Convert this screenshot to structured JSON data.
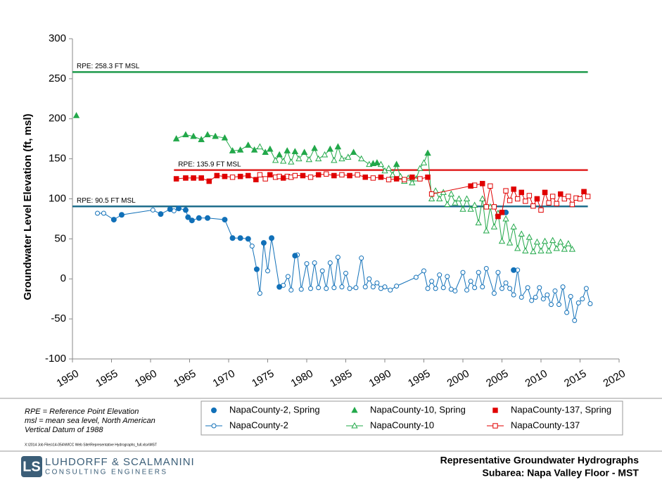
{
  "chart_data": {
    "type": "scatter",
    "y_label": "Groundwater Level Elevation (ft, msl)",
    "xlim": [
      1950,
      2020
    ],
    "xticks": [
      1950,
      1955,
      1960,
      1965,
      1970,
      1975,
      1980,
      1985,
      1990,
      1995,
      2000,
      2005,
      2010,
      2015,
      2020
    ],
    "ylim": [
      -100,
      300
    ],
    "yticks": [
      -100,
      -50,
      0,
      50,
      100,
      150,
      200,
      250,
      300
    ],
    "grid": false,
    "legend": "bottom",
    "reference_lines": [
      {
        "value": 258.3,
        "label": "RPE:  258.3 FT MSL",
        "color": "#1e9a4c",
        "x": [
          1950,
          2016
        ]
      },
      {
        "value": 135.9,
        "label": "RPE:  135.9 FT MSL",
        "color": "#e02020",
        "x": [
          1963,
          2016
        ]
      },
      {
        "value": 90.5,
        "label": "RPE:  90.5 FT MSL",
        "color": "#1f6e8c",
        "x": [
          1950,
          2016
        ]
      }
    ],
    "series": [
      {
        "name": "NapaCounty-2, Spring",
        "color": "#1170b8",
        "marker": "circle",
        "filled": true,
        "line": false,
        "x": [
          1955.3,
          1956.3,
          1961.3,
          1962.5,
          1963.6,
          1964.5,
          1964.8,
          1965.3,
          1966.2,
          1967.3,
          1969.5,
          1970.5,
          1971.5,
          1972.5,
          1973.6,
          1974.5,
          1975.5,
          1976.5,
          1978.5,
          2005.5,
          2006.5
        ],
        "values": [
          74,
          80,
          81,
          87,
          88,
          86,
          77,
          73,
          76,
          76,
          74,
          51,
          51,
          50,
          12,
          45,
          51,
          -10,
          29,
          83,
          11
        ]
      },
      {
        "name": "NapaCounty-10, Spring",
        "color": "#22a84a",
        "marker": "triangle",
        "filled": true,
        "line": false,
        "x": [
          1950.5,
          1963.3,
          1964.5,
          1965.5,
          1966.5,
          1967.3,
          1968.3,
          1969.5,
          1970.5,
          1971.5,
          1972.5,
          1973.3,
          1974.7,
          1975.3,
          1976.5,
          1977.5,
          1978.5,
          1979.7,
          1981,
          1983,
          1984,
          1986,
          1988.5,
          1989,
          1991.5,
          1995.5
        ],
        "values": [
          204,
          175,
          180,
          178,
          174,
          180,
          178,
          176,
          160,
          161,
          167,
          161,
          158,
          162,
          155,
          160,
          159,
          158,
          163,
          162,
          165,
          158,
          144,
          145,
          143,
          157
        ]
      },
      {
        "name": "NapaCounty-137, Spring",
        "color": "#e00000",
        "marker": "square",
        "filled": true,
        "line": false,
        "x": [
          1963.3,
          1964.5,
          1965.5,
          1966.5,
          1967.5,
          1968.5,
          1969.5,
          1971.5,
          1972.5,
          1973.5,
          1975.3,
          1977,
          1979.5,
          1981.5,
          1983.5,
          1985.5,
          1987.5,
          1989.5,
          1991.5,
          1993.5,
          1995.5,
          2001,
          2002.5,
          2004.5,
          2005,
          2006.5,
          2007.5,
          2009.5,
          2010.5,
          2012.5,
          2015.5
        ],
        "values": [
          125,
          126,
          126,
          126,
          122,
          129,
          128,
          128,
          129,
          124,
          130,
          126,
          129,
          130,
          129,
          129,
          127,
          127,
          125,
          127,
          127,
          116,
          119,
          78,
          83,
          112,
          108,
          100,
          108,
          106,
          109
        ]
      },
      {
        "name": "NapaCounty-2",
        "color": "#1170b8",
        "marker": "circle",
        "filled": false,
        "line": true,
        "x": [
          1953.2,
          1954,
          1955.3,
          1956.3,
          1960.3,
          1961.3,
          1962.5,
          1963,
          1963.6,
          1964.5,
          1964.8,
          1965.3,
          1966.2,
          1967.3,
          1969.5,
          1970.5,
          1971.5,
          1972.5,
          1973,
          1973.6,
          1974,
          1974.5,
          1975,
          1975.5,
          1976.5,
          1977,
          1977.6,
          1978,
          1978.5,
          1978.8,
          1979.3,
          1980,
          1980.5,
          1981,
          1981.5,
          1982,
          1982.5,
          1983,
          1983.5,
          1984,
          1984.5,
          1985,
          1985.5,
          1986.3,
          1987,
          1987.5,
          1988,
          1988.5,
          1989,
          1989.5,
          1990,
          1990.7,
          1991.5,
          1994,
          1995,
          1995.5,
          1996,
          1996.5,
          1997,
          1997.5,
          1998,
          1998.5,
          1999,
          2000,
          2000.5,
          2001,
          2001.5,
          2002,
          2002.5,
          2003,
          2004,
          2004.5,
          2005,
          2005.5,
          2006,
          2006.5,
          2007,
          2007.5,
          2008.3,
          2008.8,
          2009.3,
          2009.8,
          2010.3,
          2010.8,
          2011.3,
          2011.8,
          2012.3,
          2012.8,
          2013.3,
          2013.8,
          2014.3,
          2014.8,
          2015.3,
          2015.8,
          2016.3
        ],
        "values": [
          82,
          82,
          74,
          80,
          86,
          81,
          87,
          85,
          88,
          86,
          77,
          73,
          76,
          76,
          74,
          51,
          51,
          50,
          41,
          12,
          -18,
          45,
          10,
          51,
          -10,
          -8,
          3,
          -14,
          29,
          30,
          -13,
          19,
          -12,
          20,
          -11,
          10,
          -12,
          20,
          -11,
          27,
          -10,
          7,
          -12,
          -11,
          26,
          -10,
          0,
          -10,
          -5,
          -12,
          -10,
          -14,
          -9,
          2,
          10,
          -12,
          -3,
          -12,
          5,
          -11,
          3,
          -13,
          -15,
          8,
          -14,
          -3,
          -11,
          8,
          -10,
          13,
          -18,
          8,
          -12,
          -5,
          -12,
          -20,
          11,
          -23,
          -11,
          -27,
          -23,
          -11,
          -25,
          -20,
          -32,
          -15,
          -32,
          -10,
          -42,
          -22,
          -52,
          -30,
          -25,
          -12,
          -31
        ]
      },
      {
        "name": "NapaCounty-10",
        "color": "#22a84a",
        "marker": "triangle",
        "filled": false,
        "line": true,
        "x": [
          1963.3,
          1964.5,
          1965.5,
          1966.5,
          1967.3,
          1968.3,
          1969.5,
          1970.5,
          1971.5,
          1972.5,
          1973.3,
          1974,
          1974.7,
          1975.3,
          1976,
          1976.5,
          1977,
          1977.5,
          1978,
          1978.5,
          1979,
          1979.7,
          1980.3,
          1981,
          1981.5,
          1982.3,
          1983,
          1983.5,
          1984,
          1984.5,
          1985.3,
          1986,
          1987,
          1988,
          1988.5,
          1989,
          1989.5,
          1990,
          1990.5,
          1991,
          1991.5,
          1992,
          1992.5,
          1993,
          1993.5,
          1994,
          1994.5,
          1995,
          1995.5,
          1996,
          1996.5,
          1997,
          1997.5,
          1998,
          1998.5,
          1999,
          1999.5,
          2000,
          2000.5,
          2001,
          2001.5,
          2002,
          2002.5,
          2003,
          2003.5,
          2004,
          2004.5,
          2005,
          2005.5,
          2006,
          2006.5,
          2007,
          2007.5,
          2008,
          2008.5,
          2009,
          2009.5,
          2010,
          2010.5,
          2011,
          2011.5,
          2012,
          2012.5,
          2013,
          2013.5,
          2014
        ],
        "values": [
          175,
          180,
          178,
          174,
          180,
          178,
          176,
          160,
          161,
          167,
          161,
          165,
          158,
          162,
          148,
          155,
          147,
          160,
          146,
          159,
          150,
          158,
          149,
          163,
          150,
          155,
          162,
          148,
          165,
          150,
          152,
          158,
          150,
          143,
          144,
          145,
          143,
          135,
          138,
          130,
          143,
          128,
          122,
          126,
          120,
          125,
          138,
          145,
          157,
          100,
          110,
          100,
          108,
          93,
          106,
          95,
          100,
          87,
          100,
          87,
          92,
          70,
          100,
          60,
          90,
          65,
          82,
          47,
          75,
          45,
          65,
          38,
          56,
          35,
          52,
          34,
          46,
          35,
          47,
          35,
          48,
          38,
          46,
          37,
          44,
          37
        ]
      },
      {
        "name": "NapaCounty-137",
        "color": "#e00000",
        "marker": "square",
        "filled": false,
        "line": true,
        "x": [
          1963.3,
          1964.5,
          1965.5,
          1966.5,
          1967.5,
          1968.5,
          1969.5,
          1970.5,
          1971.5,
          1972.5,
          1973.5,
          1974,
          1974.7,
          1975.3,
          1976,
          1976.5,
          1977,
          1977.5,
          1978,
          1978.5,
          1979.5,
          1980.5,
          1981.5,
          1982.5,
          1983.5,
          1984.5,
          1985.5,
          1986.5,
          1987.5,
          1988.5,
          1989.5,
          1990.5,
          1991.5,
          1992.5,
          1993.5,
          1994.5,
          1995.5,
          1996,
          2001,
          2001.5,
          2002.5,
          2003,
          2003.5,
          2004,
          2004.5,
          2005,
          2005.5,
          2006,
          2006.5,
          2007,
          2007.5,
          2008,
          2008.5,
          2009,
          2009.5,
          2010,
          2010.5,
          2011,
          2011.5,
          2012,
          2012.5,
          2013,
          2013.5,
          2014,
          2014.5,
          2015,
          2015.5,
          2016
        ],
        "values": [
          125,
          126,
          126,
          126,
          122,
          129,
          128,
          127,
          128,
          129,
          124,
          130,
          125,
          130,
          127,
          128,
          126,
          128,
          127,
          129,
          129,
          127,
          130,
          131,
          129,
          130,
          129,
          130,
          127,
          126,
          127,
          124,
          125,
          124,
          127,
          125,
          127,
          106,
          116,
          117,
          119,
          90,
          116,
          90,
          78,
          83,
          110,
          98,
          112,
          100,
          108,
          97,
          104,
          91,
          100,
          86,
          108,
          95,
          103,
          94,
          106,
          100,
          103,
          93,
          101,
          100,
          109,
          103
        ]
      }
    ]
  },
  "notes": [
    "RPE = Reference Point Elevation",
    "msl = mean sea level, North American",
    "Vertical Datum of 1988"
  ],
  "file_path": "X:\\2014 Job Files\\14-054\\WICC Web Site\\Representative Hydrographs_full.xlsx\\MST",
  "logo": {
    "name": "LUHDORFF & SCALMANINI",
    "tagline": "CONSULTING ENGINEERS"
  },
  "footer_title": [
    "Representative Groundwater Hydrographs",
    "Subarea: Napa Valley Floor - MST"
  ]
}
